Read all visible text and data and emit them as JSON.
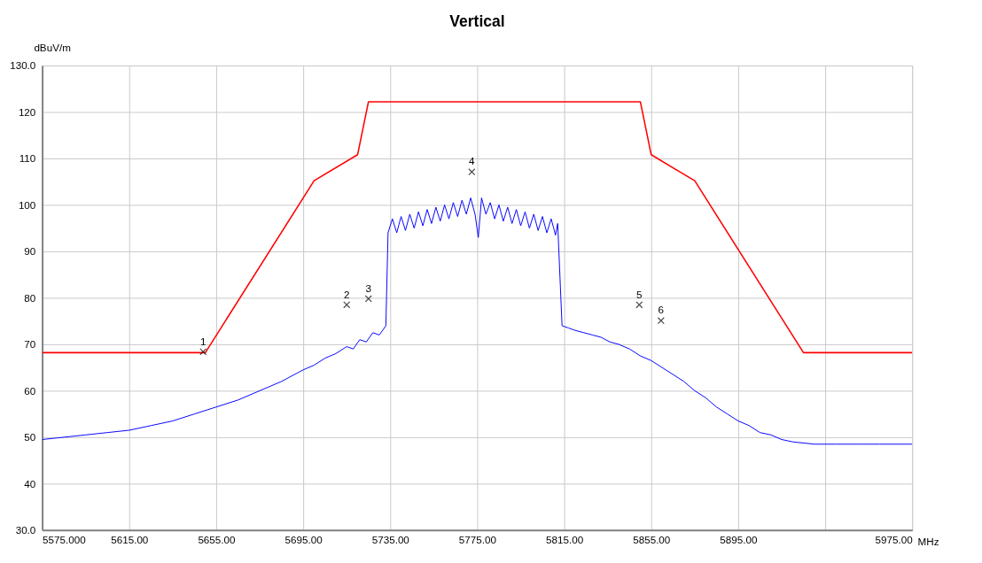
{
  "chart_data": {
    "type": "line",
    "title": "Vertical",
    "xlabel": "MHz",
    "ylabel": "dBuV/m",
    "xlim": [
      5575,
      5975
    ],
    "ylim": [
      30,
      130
    ],
    "xticks": [
      {
        "value": 5575,
        "label": "5575.000"
      },
      {
        "value": 5615,
        "label": "5615.00"
      },
      {
        "value": 5655,
        "label": "5655.00"
      },
      {
        "value": 5695,
        "label": "5695.00"
      },
      {
        "value": 5735,
        "label": "5735.00"
      },
      {
        "value": 5775,
        "label": "5775.00"
      },
      {
        "value": 5815,
        "label": "5815.00"
      },
      {
        "value": 5855,
        "label": "5855.00"
      },
      {
        "value": 5895,
        "label": "5895.00"
      },
      {
        "value": 5935,
        "label": null
      },
      {
        "value": 5975,
        "label": "5975.00"
      }
    ],
    "yticks": [
      {
        "value": 30,
        "label": "30.0"
      },
      40,
      50,
      60,
      70,
      80,
      90,
      100,
      110,
      120,
      {
        "value": 130,
        "label": "130.0"
      }
    ],
    "grid": true,
    "legend": false,
    "line_style": "solid",
    "series": [
      {
        "type": "line",
        "color": "#ff0000",
        "x": [
          5575,
          5650,
          5700,
          5720,
          5725,
          5850,
          5855,
          5875,
          5925,
          5975
        ],
        "values": [
          68.2,
          68.2,
          105.2,
          110.8,
          122.2,
          122.2,
          110.8,
          105.2,
          68.2,
          68.2
        ]
      },
      {
        "type": "line",
        "color": "#0000ff",
        "x": [
          5575,
          5585,
          5595,
          5605,
          5615,
          5625,
          5635,
          5645,
          5655,
          5665,
          5675,
          5685,
          5695,
          5700,
          5705,
          5710,
          5715,
          5718,
          5721,
          5724,
          5727,
          5730,
          5733,
          5734,
          5736,
          5738,
          5740,
          5742,
          5744,
          5746,
          5748,
          5750,
          5752,
          5754,
          5756,
          5758,
          5760,
          5762,
          5764,
          5766,
          5768,
          5770,
          5772,
          5774,
          5775.5,
          5777,
          5779,
          5781,
          5783,
          5785,
          5787,
          5789,
          5791,
          5793,
          5795,
          5797,
          5799,
          5801,
          5803,
          5805,
          5807,
          5809,
          5811,
          5812,
          5814,
          5817,
          5820,
          5824,
          5828,
          5832,
          5836,
          5840,
          5845,
          5850,
          5855,
          5860,
          5865,
          5870,
          5875,
          5880,
          5885,
          5890,
          5895,
          5900,
          5905,
          5910,
          5915,
          5920,
          5930,
          5940,
          5950,
          5960,
          5975
        ],
        "values": [
          49.5,
          50,
          50.5,
          51,
          51.5,
          52.5,
          53.5,
          55,
          56.5,
          58,
          60,
          62,
          64.5,
          65.5,
          67,
          68,
          69.5,
          69,
          71,
          70.5,
          72.5,
          72,
          74,
          94,
          97,
          94,
          97.5,
          94.5,
          98,
          95,
          98.5,
          95.5,
          99,
          96,
          99.5,
          96.5,
          100,
          97,
          100.5,
          97.5,
          101,
          98,
          101.5,
          98,
          93,
          101.5,
          98,
          100.5,
          97,
          100,
          96.5,
          99.5,
          96,
          99,
          95.5,
          98.5,
          95,
          98,
          94.5,
          97.5,
          94,
          97,
          93.5,
          96,
          74,
          73.5,
          73,
          72.5,
          72,
          71.5,
          70.5,
          70,
          69,
          67.5,
          66.5,
          65,
          63.5,
          62,
          60,
          58.5,
          56.5,
          55,
          53.5,
          52.5,
          51,
          50.5,
          49.5,
          49,
          48.5,
          48.5,
          48.5,
          48.5,
          48.5
        ]
      },
      {
        "type": "scatter",
        "marker": "cross",
        "color": "#000000",
        "x": [
          5649,
          5715,
          5725,
          5772.5,
          5849.5,
          5859.5
        ],
        "values": [
          68.4,
          78.5,
          79.8,
          107.1,
          78.5,
          75.1
        ]
      }
    ],
    "annotations": [
      {
        "text": "1",
        "x": 5649,
        "y": 68.4
      },
      {
        "text": "2",
        "x": 5715,
        "y": 78.5
      },
      {
        "text": "3",
        "x": 5725,
        "y": 79.8
      },
      {
        "text": "4",
        "x": 5772.5,
        "y": 107.1
      },
      {
        "text": "5",
        "x": 5849.5,
        "y": 78.5
      },
      {
        "text": "6",
        "x": 5859.5,
        "y": 75.1
      }
    ]
  }
}
